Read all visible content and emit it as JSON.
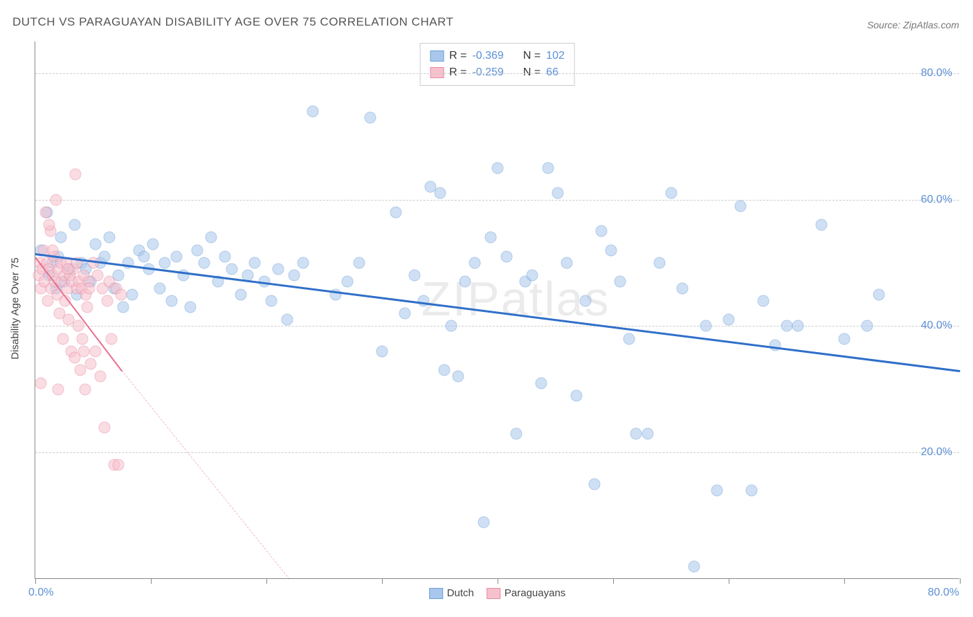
{
  "title": "DUTCH VS PARAGUAYAN DISABILITY AGE OVER 75 CORRELATION CHART",
  "source": "Source: ZipAtlas.com",
  "watermark": "ZIPatlas",
  "y_axis_label": "Disability Age Over 75",
  "x_min_label": "0.0%",
  "x_max_label": "80.0%",
  "chart": {
    "type": "scatter",
    "xlim": [
      0,
      80
    ],
    "ylim": [
      0,
      85
    ],
    "y_ticks": [
      20,
      40,
      60,
      80
    ],
    "y_tick_labels": [
      "20.0%",
      "40.0%",
      "60.0%",
      "80.0%"
    ],
    "x_ticks": [
      0,
      10,
      20,
      30,
      40,
      50,
      60,
      70,
      80
    ],
    "grid_color": "#cccccc",
    "background_color": "#ffffff",
    "point_radius": 8.5,
    "point_opacity": 0.55,
    "series": [
      {
        "name": "Dutch",
        "color_fill": "#a9c7ec",
        "color_stroke": "#6f9fd8",
        "r": "-0.369",
        "n": "102",
        "trend": {
          "x1": 0,
          "y1": 51.5,
          "x2": 80,
          "y2": 33,
          "color": "#2f6fc9",
          "width": 2.5,
          "dashed_after_x": 80
        },
        "points": [
          [
            0.5,
            52
          ],
          [
            1.0,
            58
          ],
          [
            1.2,
            48
          ],
          [
            1.5,
            50
          ],
          [
            1.8,
            46
          ],
          [
            2.0,
            51
          ],
          [
            2.2,
            54
          ],
          [
            2.5,
            47
          ],
          [
            3.0,
            49
          ],
          [
            3.4,
            56
          ],
          [
            3.6,
            45
          ],
          [
            4.0,
            50
          ],
          [
            4.4,
            49
          ],
          [
            4.8,
            47
          ],
          [
            5.2,
            53
          ],
          [
            5.6,
            50
          ],
          [
            6.0,
            51
          ],
          [
            6.4,
            54
          ],
          [
            6.8,
            46
          ],
          [
            7.2,
            48
          ],
          [
            7.6,
            43
          ],
          [
            8.0,
            50
          ],
          [
            8.4,
            45
          ],
          [
            9.0,
            52
          ],
          [
            9.4,
            51
          ],
          [
            9.8,
            49
          ],
          [
            10.2,
            53
          ],
          [
            10.8,
            46
          ],
          [
            11.2,
            50
          ],
          [
            11.8,
            44
          ],
          [
            12.2,
            51
          ],
          [
            12.8,
            48
          ],
          [
            13.4,
            43
          ],
          [
            14.0,
            52
          ],
          [
            14.6,
            50
          ],
          [
            15.2,
            54
          ],
          [
            15.8,
            47
          ],
          [
            16.4,
            51
          ],
          [
            17.0,
            49
          ],
          [
            17.8,
            45
          ],
          [
            18.4,
            48
          ],
          [
            19.0,
            50
          ],
          [
            19.8,
            47
          ],
          [
            20.4,
            44
          ],
          [
            21.0,
            49
          ],
          [
            21.8,
            41
          ],
          [
            22.4,
            48
          ],
          [
            23.2,
            50
          ],
          [
            24.0,
            74
          ],
          [
            26.0,
            45
          ],
          [
            27.0,
            47
          ],
          [
            28.0,
            50
          ],
          [
            29.0,
            73
          ],
          [
            30.0,
            36
          ],
          [
            31.2,
            58
          ],
          [
            32.0,
            42
          ],
          [
            32.8,
            48
          ],
          [
            33.6,
            44
          ],
          [
            34.2,
            62
          ],
          [
            35.0,
            61
          ],
          [
            35.4,
            33
          ],
          [
            36.0,
            40
          ],
          [
            36.6,
            32
          ],
          [
            37.2,
            47
          ],
          [
            38.0,
            50
          ],
          [
            38.8,
            9
          ],
          [
            39.4,
            54
          ],
          [
            40.0,
            65
          ],
          [
            40.8,
            51
          ],
          [
            41.6,
            23
          ],
          [
            42.4,
            47
          ],
          [
            43.0,
            48
          ],
          [
            43.8,
            31
          ],
          [
            44.4,
            65
          ],
          [
            45.2,
            61
          ],
          [
            46.0,
            50
          ],
          [
            46.8,
            29
          ],
          [
            47.6,
            44
          ],
          [
            48.4,
            15
          ],
          [
            49.0,
            55
          ],
          [
            49.8,
            52
          ],
          [
            50.6,
            47
          ],
          [
            51.4,
            38
          ],
          [
            52.0,
            23
          ],
          [
            53.0,
            23
          ],
          [
            54.0,
            50
          ],
          [
            55.0,
            61
          ],
          [
            56.0,
            46
          ],
          [
            57.0,
            2
          ],
          [
            58.0,
            40
          ],
          [
            59.0,
            14
          ],
          [
            60.0,
            41
          ],
          [
            61.0,
            59
          ],
          [
            62.0,
            14
          ],
          [
            63.0,
            44
          ],
          [
            64.0,
            37
          ],
          [
            65.0,
            40
          ],
          [
            66.0,
            40
          ],
          [
            68.0,
            56
          ],
          [
            70.0,
            38
          ],
          [
            72.0,
            40
          ],
          [
            73.0,
            45
          ]
        ]
      },
      {
        "name": "Paraguayans",
        "color_fill": "#f6c1cd",
        "color_stroke": "#ea8aa4",
        "r": "-0.259",
        "n": "66",
        "trend": {
          "x1": 0,
          "y1": 51,
          "x2": 7.5,
          "y2": 33,
          "color": "#e86d8e",
          "width": 2,
          "dashed_after_x": 7.5,
          "dash_to_x": 22,
          "dash_to_y": 0
        },
        "points": [
          [
            0.3,
            48
          ],
          [
            0.4,
            50
          ],
          [
            0.5,
            46
          ],
          [
            0.6,
            49
          ],
          [
            0.7,
            52
          ],
          [
            0.8,
            47
          ],
          [
            0.9,
            58
          ],
          [
            1.0,
            50
          ],
          [
            1.1,
            44
          ],
          [
            1.2,
            49
          ],
          [
            1.3,
            55
          ],
          [
            1.4,
            46
          ],
          [
            1.5,
            48
          ],
          [
            1.6,
            51
          ],
          [
            1.7,
            47
          ],
          [
            1.8,
            60
          ],
          [
            1.9,
            45
          ],
          [
            2.0,
            49
          ],
          [
            2.1,
            42
          ],
          [
            2.2,
            50
          ],
          [
            2.3,
            47
          ],
          [
            2.4,
            38
          ],
          [
            2.5,
            48
          ],
          [
            2.6,
            44
          ],
          [
            2.7,
            50
          ],
          [
            2.8,
            46
          ],
          [
            2.9,
            41
          ],
          [
            3.0,
            48
          ],
          [
            3.1,
            36
          ],
          [
            3.2,
            47
          ],
          [
            3.3,
            49
          ],
          [
            3.4,
            35
          ],
          [
            3.5,
            64
          ],
          [
            3.6,
            46
          ],
          [
            3.7,
            40
          ],
          [
            3.8,
            47
          ],
          [
            3.9,
            33
          ],
          [
            4.0,
            46
          ],
          [
            4.1,
            38
          ],
          [
            4.2,
            48
          ],
          [
            4.3,
            30
          ],
          [
            4.4,
            45
          ],
          [
            4.5,
            43
          ],
          [
            4.6,
            47
          ],
          [
            4.7,
            46
          ],
          [
            4.8,
            34
          ],
          [
            5.0,
            50
          ],
          [
            5.2,
            36
          ],
          [
            5.4,
            48
          ],
          [
            5.6,
            32
          ],
          [
            5.8,
            46
          ],
          [
            6.0,
            24
          ],
          [
            6.2,
            44
          ],
          [
            6.4,
            47
          ],
          [
            6.6,
            38
          ],
          [
            6.8,
            18
          ],
          [
            7.0,
            46
          ],
          [
            7.2,
            18
          ],
          [
            7.4,
            45
          ],
          [
            0.5,
            31
          ],
          [
            1.2,
            56
          ],
          [
            2.0,
            30
          ],
          [
            1.5,
            52
          ],
          [
            2.8,
            49
          ],
          [
            3.6,
            50
          ],
          [
            4.2,
            36
          ]
        ]
      }
    ]
  },
  "legend_bottom": [
    {
      "label": "Dutch",
      "fill": "#a9c7ec",
      "stroke": "#6f9fd8"
    },
    {
      "label": "Paraguayans",
      "fill": "#f6c1cd",
      "stroke": "#ea8aa4"
    }
  ]
}
